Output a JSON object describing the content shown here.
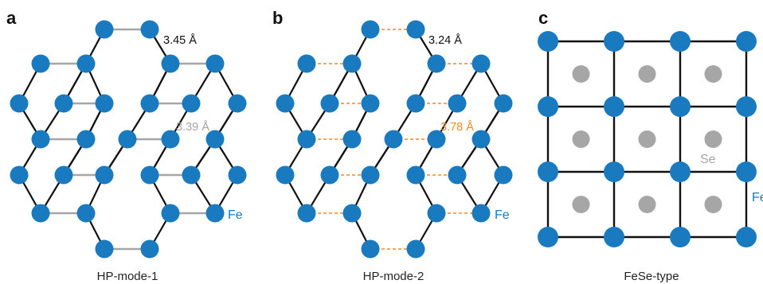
{
  "colors": {
    "fe": "#1a7ac0",
    "se": "#a6a6a6",
    "bond": "#111111",
    "bond_short": "#a6a6a6",
    "bond_dashed": "#f08a24",
    "label_gray": "#a6a6a6",
    "label_orange": "#f08a24"
  },
  "panels": [
    {
      "letter": "a",
      "caption": "HP-mode-1",
      "label_top": "3.45 Å",
      "label_mid": "3.39 Å",
      "atom_label": "Fe"
    },
    {
      "letter": "b",
      "caption": "HP-mode-2",
      "label_top": "3.24 Å",
      "label_mid": "3.78 Å",
      "atom_label": "Fe"
    },
    {
      "letter": "c",
      "caption": "FeSe-type",
      "se_label": "Se",
      "fe_label": "Fe"
    }
  ]
}
